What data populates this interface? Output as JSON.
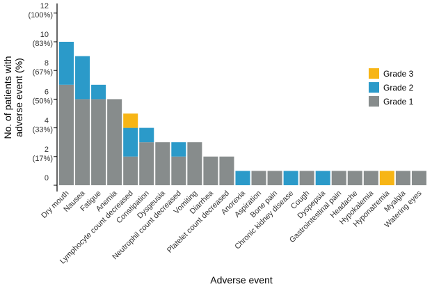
{
  "chart_data": {
    "type": "bar",
    "stacked": true,
    "xlabel": "Adverse event",
    "ylabel": [
      "No. of patients with",
      "adverse event (%)"
    ],
    "ylim": [
      0,
      12
    ],
    "yticks": [
      {
        "value": 0,
        "label": "0",
        "pct": ""
      },
      {
        "value": 2,
        "label": "2",
        "pct": "(17%)"
      },
      {
        "value": 4,
        "label": "4",
        "pct": "(33%)"
      },
      {
        "value": 6,
        "label": "6",
        "pct": "(50%)"
      },
      {
        "value": 8,
        "label": "8",
        "pct": "(67%)"
      },
      {
        "value": 10,
        "label": "10",
        "pct": "(83%)"
      },
      {
        "value": 12,
        "label": "12",
        "pct": "(100%)"
      }
    ],
    "categories": [
      "Dry mouth",
      "Nausea",
      "Fatigue",
      "Anemia",
      "Lymphocyte count decreased",
      "Constipation",
      "Dysgeusia",
      "Neutrophil count decreased",
      "Vomiting",
      "Diarrhea",
      "Platelet count decreased",
      "Anorexia",
      "Aspiration",
      "Bone pain",
      "Chronic kidney disease",
      "Cough",
      "Dyspepsia",
      "Gastrointestinal pain",
      "Headache",
      "Hypokalemia",
      "Hyponatremia",
      "Myalgia",
      "Watering eyes"
    ],
    "series": [
      {
        "name": "Grade 1",
        "color": "#878c8c",
        "values": [
          7,
          6,
          6,
          6,
          2,
          3,
          3,
          2,
          3,
          2,
          2,
          0,
          1,
          1,
          0,
          1,
          0,
          1,
          1,
          1,
          0,
          1,
          1
        ]
      },
      {
        "name": "Grade 2",
        "color": "#2b9ac9",
        "values": [
          3,
          3,
          1,
          0,
          2,
          1,
          0,
          1,
          0,
          0,
          0,
          1,
          0,
          0,
          1,
          0,
          1,
          0,
          0,
          0,
          0,
          0,
          0
        ]
      },
      {
        "name": "Grade 3",
        "color": "#f7b515",
        "values": [
          0,
          0,
          0,
          0,
          1,
          0,
          0,
          0,
          0,
          0,
          0,
          0,
          0,
          0,
          0,
          0,
          0,
          0,
          0,
          0,
          1,
          0,
          0
        ]
      }
    ],
    "legend": {
      "placement": "right",
      "order": [
        "Grade 3",
        "Grade 2",
        "Grade 1"
      ]
    }
  }
}
